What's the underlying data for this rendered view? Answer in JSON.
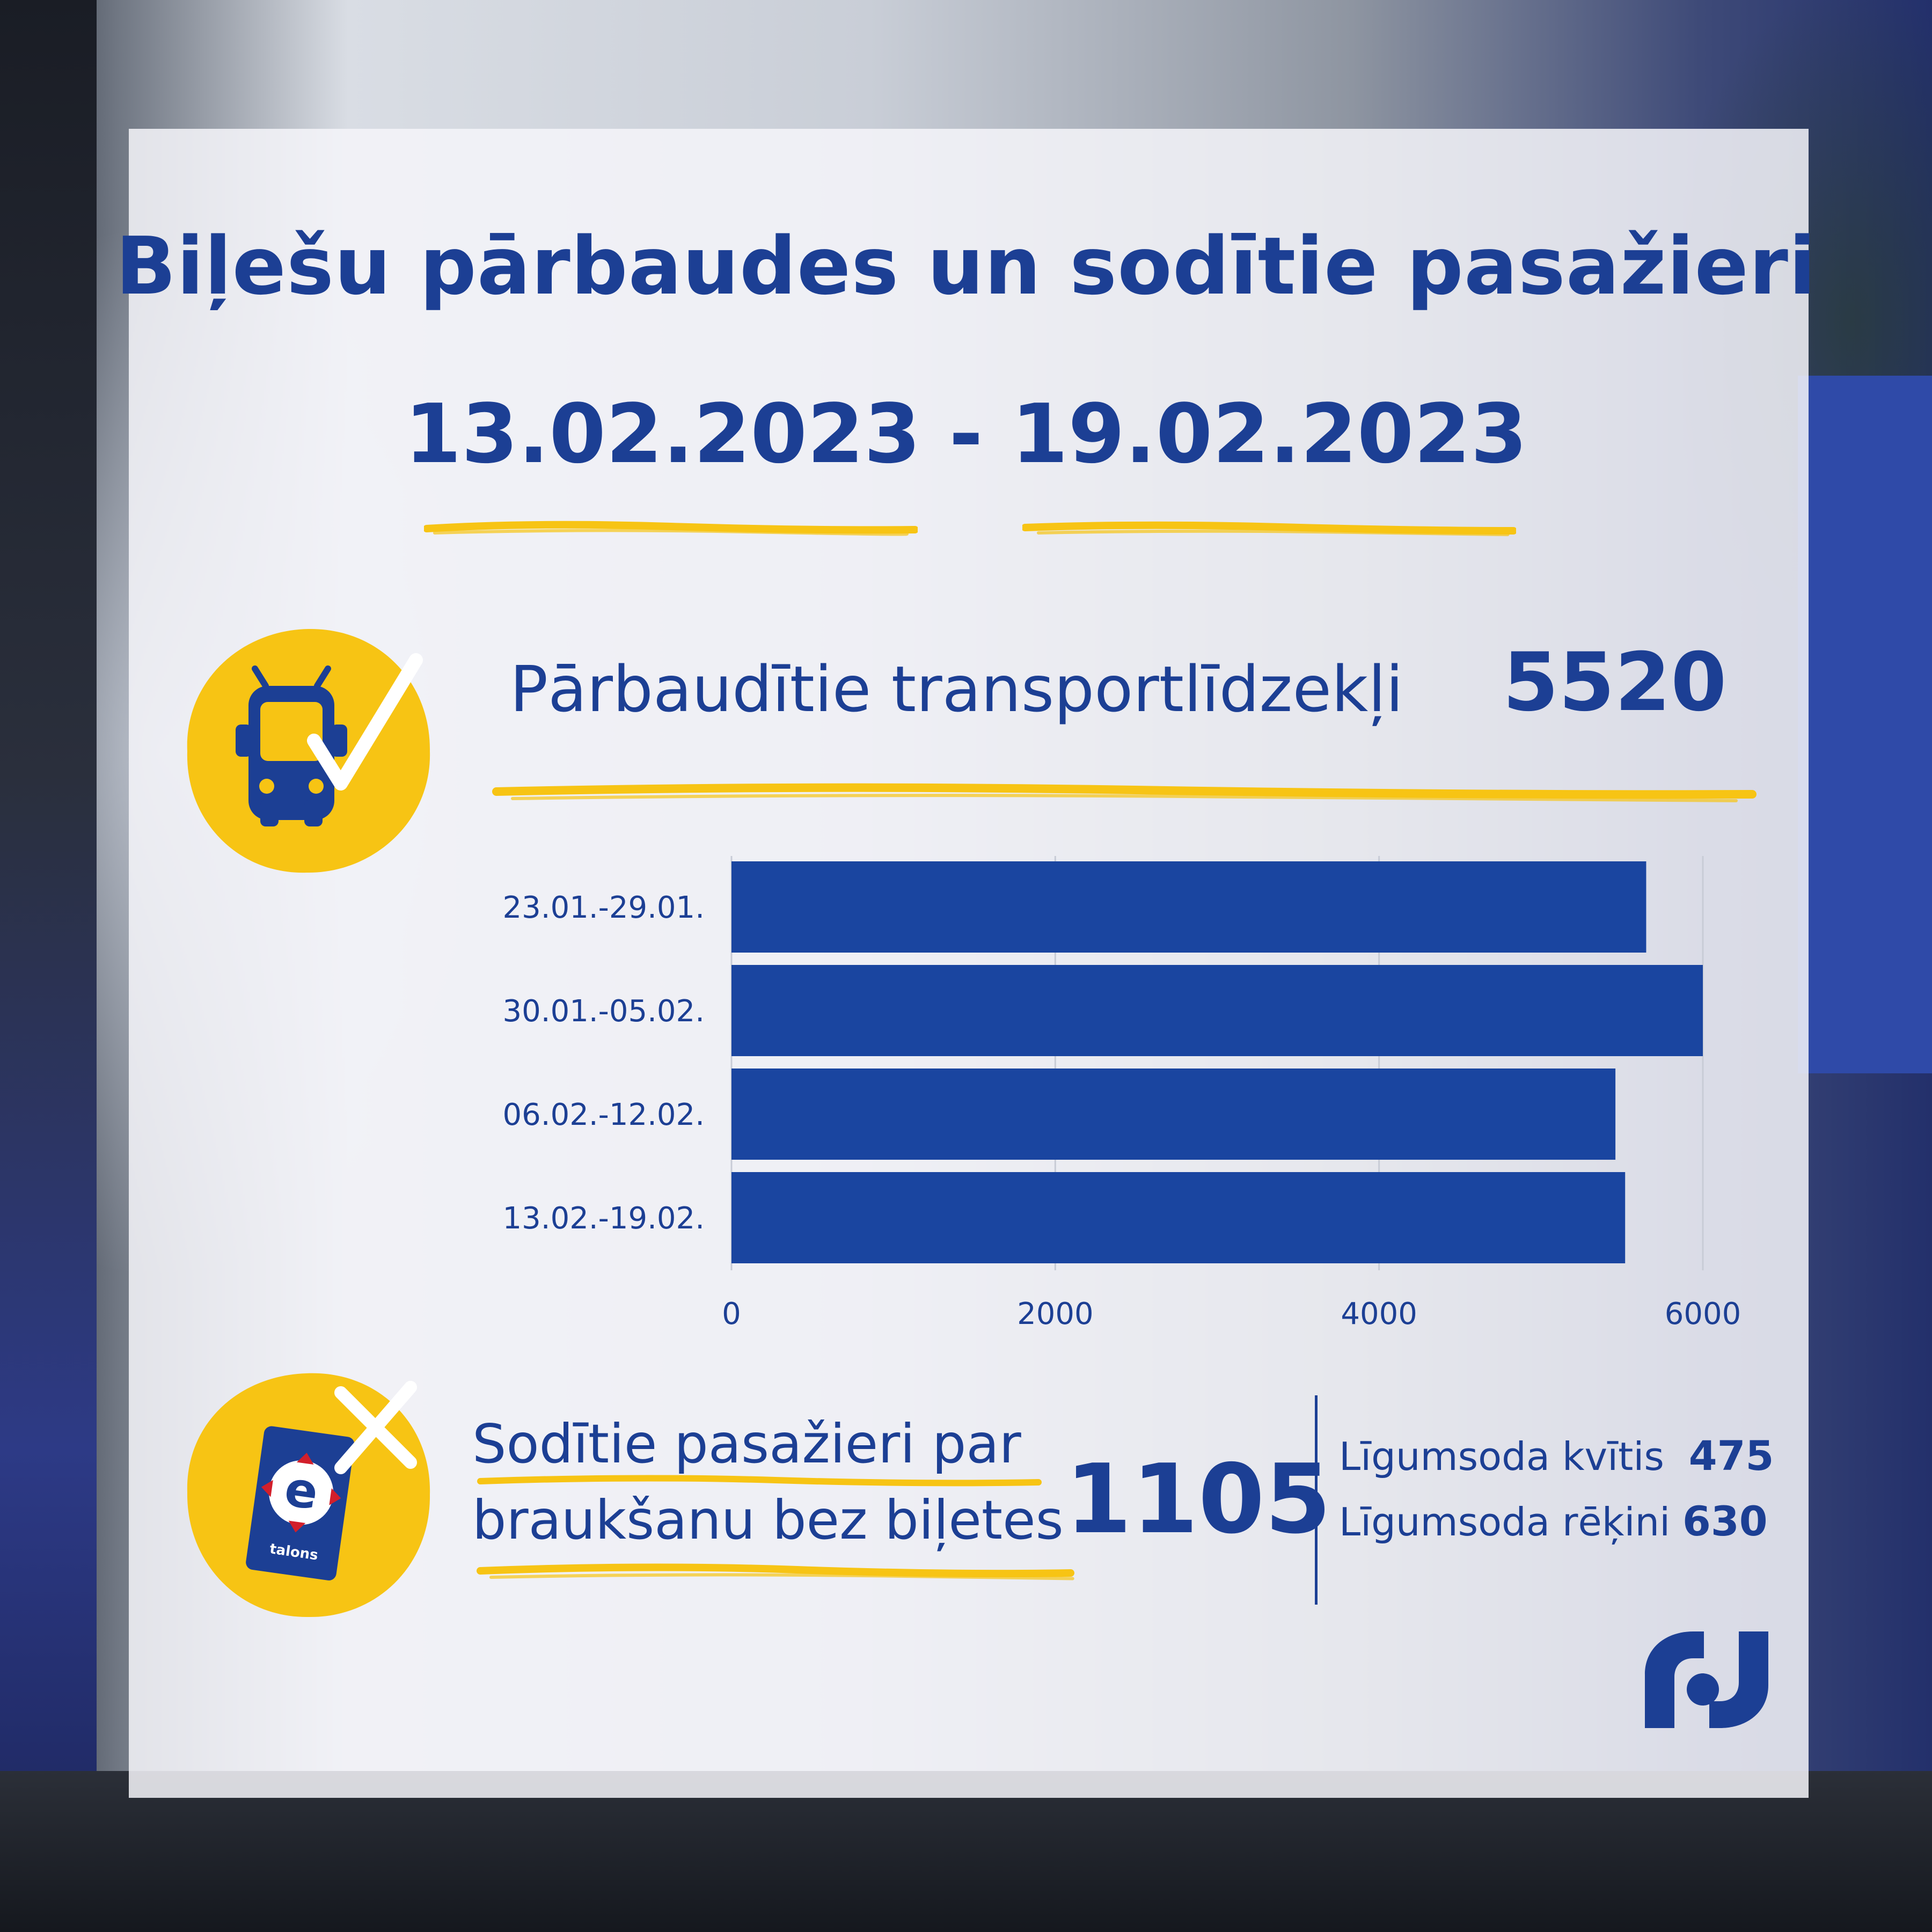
{
  "title": "Biļešu pārbaudes un sodītie pasažieri",
  "date_range": "13.02.2023 - 19.02.2023",
  "checked_vehicles": {
    "label": "Pārbaudītie transportlīdzekļi",
    "value": "5520",
    "icon": "bus-check-icon"
  },
  "chart_data": {
    "type": "bar",
    "orientation": "horizontal",
    "categories": [
      "23.01.-29.01.",
      "30.01.-05.02.",
      "06.02.-12.02.",
      "13.02.-19.02."
    ],
    "values": [
      5650,
      6000,
      5460,
      5520
    ],
    "xlim": [
      0,
      6000
    ],
    "xticks": [
      "0",
      "2000",
      "4000",
      "6000"
    ],
    "grid": true,
    "color": "#1a45a0"
  },
  "fined_passengers": {
    "label_line1": "Sodītie pasažieri par",
    "label_line2": "braukšanu bez biļetes",
    "value": "1105",
    "icon": "etalons-card-cross-icon",
    "card_text": "talons",
    "breakdown": [
      {
        "label": "Līgumsoda kvītis",
        "value": "475"
      },
      {
        "label": "Līgumsoda rēķini",
        "value": "630"
      }
    ]
  },
  "colors": {
    "primary": "#1c3f94",
    "accent": "#f7c414",
    "bar": "#1a45a0"
  }
}
